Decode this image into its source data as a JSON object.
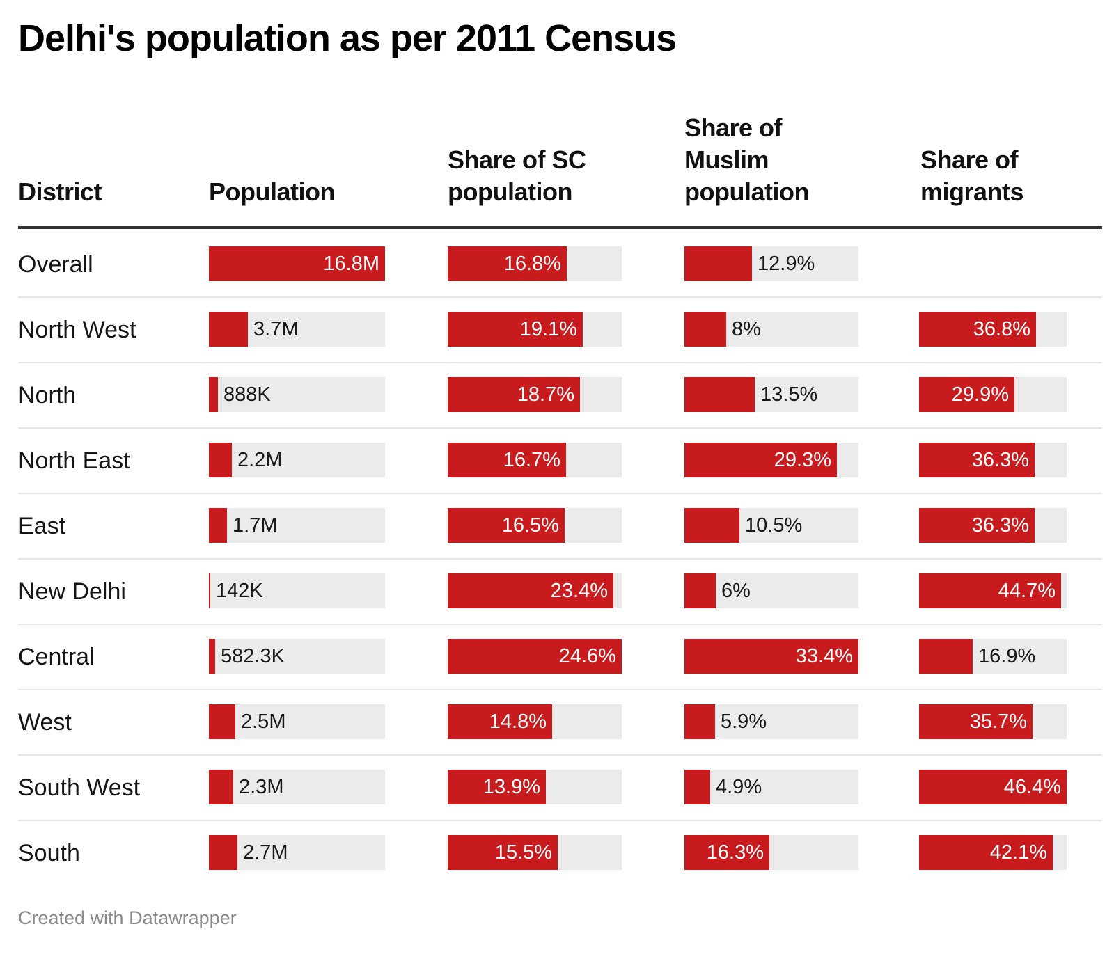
{
  "title": "Delhi's population as per 2011 Census",
  "footer": "Created with Datawrapper",
  "colors": {
    "bar": "#c71b1e",
    "track": "#ebebeb",
    "rule": "#333333",
    "separator": "#e6e6e6"
  },
  "headers": {
    "district": "District",
    "population": "Population",
    "sc": [
      "Share of SC",
      "population"
    ],
    "muslim": [
      "Share of",
      "Muslim",
      "population"
    ],
    "migrants": [
      "Share of",
      "migrants"
    ]
  },
  "chart_data": {
    "type": "table",
    "title": "Delhi's population as per 2011 Census",
    "columns": [
      "District",
      "Population",
      "Share of SC population",
      "Share of Muslim population",
      "Share of migrants"
    ],
    "scales": {
      "population_max": 16800000,
      "sc_max": 24.6,
      "muslim_max": 33.4,
      "migrants_max": 46.4
    },
    "rows": [
      {
        "district": "Overall",
        "population": 16800000,
        "population_label": "16.8M",
        "sc": 16.8,
        "sc_label": "16.8%",
        "muslim": 12.9,
        "muslim_label": "12.9%",
        "migrants": null,
        "migrants_label": ""
      },
      {
        "district": "North West",
        "population": 3700000,
        "population_label": "3.7M",
        "sc": 19.1,
        "sc_label": "19.1%",
        "muslim": 8,
        "muslim_label": "8%",
        "migrants": 36.8,
        "migrants_label": "36.8%"
      },
      {
        "district": "North",
        "population": 888000,
        "population_label": "888K",
        "sc": 18.7,
        "sc_label": "18.7%",
        "muslim": 13.5,
        "muslim_label": "13.5%",
        "migrants": 29.9,
        "migrants_label": "29.9%"
      },
      {
        "district": "North East",
        "population": 2200000,
        "population_label": "2.2M",
        "sc": 16.7,
        "sc_label": "16.7%",
        "muslim": 29.3,
        "muslim_label": "29.3%",
        "migrants": 36.3,
        "migrants_label": "36.3%"
      },
      {
        "district": "East",
        "population": 1700000,
        "population_label": "1.7M",
        "sc": 16.5,
        "sc_label": "16.5%",
        "muslim": 10.5,
        "muslim_label": "10.5%",
        "migrants": 36.3,
        "migrants_label": "36.3%"
      },
      {
        "district": "New Delhi",
        "population": 142000,
        "population_label": "142K",
        "sc": 23.4,
        "sc_label": "23.4%",
        "muslim": 6,
        "muslim_label": "6%",
        "migrants": 44.7,
        "migrants_label": "44.7%"
      },
      {
        "district": "Central",
        "population": 582300,
        "population_label": "582.3K",
        "sc": 24.6,
        "sc_label": "24.6%",
        "muslim": 33.4,
        "muslim_label": "33.4%",
        "migrants": 16.9,
        "migrants_label": "16.9%"
      },
      {
        "district": "West",
        "population": 2500000,
        "population_label": "2.5M",
        "sc": 14.8,
        "sc_label": "14.8%",
        "muslim": 5.9,
        "muslim_label": "5.9%",
        "migrants": 35.7,
        "migrants_label": "35.7%"
      },
      {
        "district": "South West",
        "population": 2300000,
        "population_label": "2.3M",
        "sc": 13.9,
        "sc_label": "13.9%",
        "muslim": 4.9,
        "muslim_label": "4.9%",
        "migrants": 46.4,
        "migrants_label": "46.4%"
      },
      {
        "district": "South",
        "population": 2700000,
        "population_label": "2.7M",
        "sc": 15.5,
        "sc_label": "15.5%",
        "muslim": 16.3,
        "muslim_label": "16.3%",
        "migrants": 42.1,
        "migrants_label": "42.1%"
      }
    ]
  }
}
